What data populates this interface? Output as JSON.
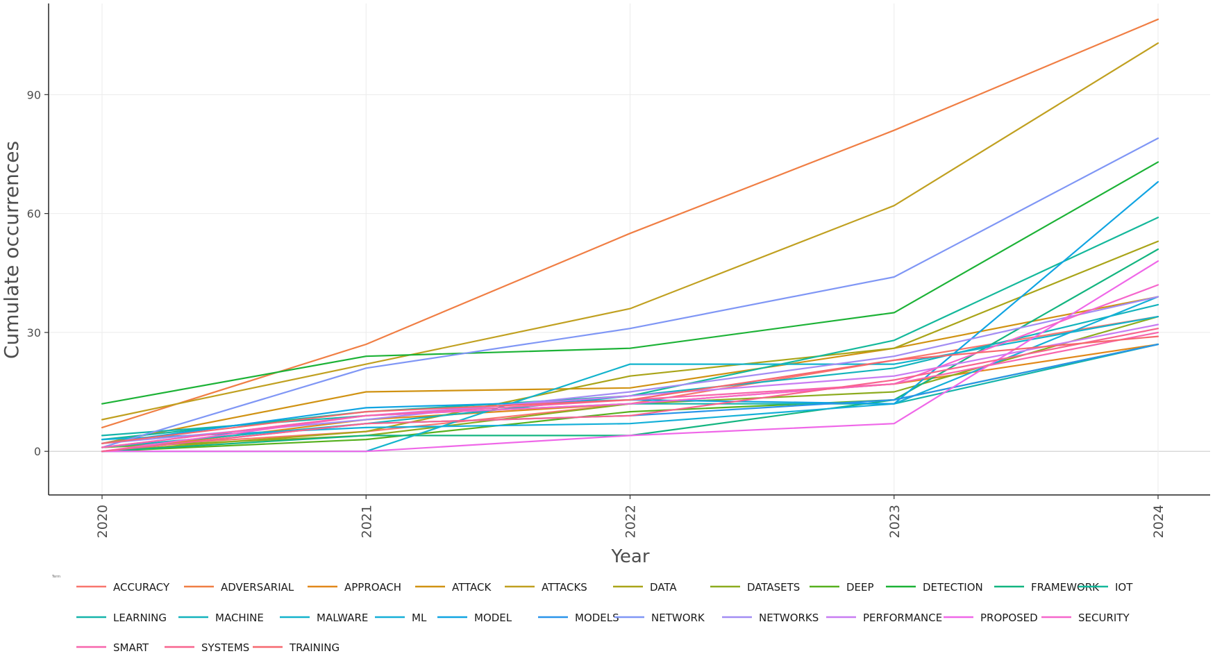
{
  "chart_data": {
    "type": "line",
    "title": "",
    "xlabel": "Year",
    "ylabel": "Cumulate occurrences",
    "legend_title": "Term",
    "legend_position": "bottom",
    "grid": true,
    "xlim": [
      2020,
      2024
    ],
    "ylim": [
      -11,
      113
    ],
    "x": [
      2020,
      2021,
      2022,
      2023,
      2024
    ],
    "x_tick_labels": [
      "2020",
      "2021",
      "2022",
      "2023",
      "2024"
    ],
    "y_ticks": [
      0,
      30,
      60,
      90
    ],
    "y_tick_labels": [
      "0",
      "30",
      "60",
      "90"
    ],
    "series": [
      {
        "name": "ACCURACY",
        "color": "#F8766D",
        "values": [
          1,
          5,
          12,
          23,
          34
        ]
      },
      {
        "name": "ADVERSARIAL",
        "color": "#F07E44",
        "values": [
          6,
          27,
          55,
          81,
          109
        ]
      },
      {
        "name": "APPROACH",
        "color": "#E1881A",
        "values": [
          0,
          8,
          12,
          17,
          27
        ]
      },
      {
        "name": "ATTACK",
        "color": "#D09212",
        "values": [
          2,
          15,
          16,
          26,
          39
        ]
      },
      {
        "name": "ATTACKS",
        "color": "#C0A020",
        "values": [
          8,
          22,
          36,
          62,
          103
        ]
      },
      {
        "name": "DATA",
        "color": "#A9A418",
        "values": [
          0,
          5,
          19,
          26,
          53
        ]
      },
      {
        "name": "DATASETS",
        "color": "#8CAB1E",
        "values": [
          1,
          4,
          12,
          15,
          34
        ]
      },
      {
        "name": "DEEP",
        "color": "#56B01E",
        "values": [
          0,
          3,
          10,
          13,
          27
        ]
      },
      {
        "name": "DETECTION",
        "color": "#1CB236",
        "values": [
          12,
          24,
          26,
          35,
          73
        ]
      },
      {
        "name": "FRAMEWORK",
        "color": "#13B580",
        "values": [
          0,
          4,
          4,
          13,
          51
        ]
      },
      {
        "name": "IOT",
        "color": "#14B89B",
        "values": [
          3,
          10,
          14,
          28,
          59
        ]
      },
      {
        "name": "LEARNING",
        "color": "#15B4AA",
        "values": [
          4,
          9,
          12,
          12,
          27
        ]
      },
      {
        "name": "MACHINE",
        "color": "#13B3BC",
        "values": [
          1,
          7,
          14,
          21,
          37
        ]
      },
      {
        "name": "MALWARE",
        "color": "#12B3CC",
        "values": [
          0,
          0,
          22,
          22,
          34
        ]
      },
      {
        "name": "ML",
        "color": "#14AFD8",
        "values": [
          3,
          6,
          7,
          12,
          39
        ]
      },
      {
        "name": "MODEL",
        "color": "#10A4E2",
        "values": [
          2,
          11,
          13,
          12,
          68
        ]
      },
      {
        "name": "MODELS",
        "color": "#2994EA",
        "values": [
          0,
          7,
          9,
          13,
          27
        ]
      },
      {
        "name": "NETWORK",
        "color": "#7F96F5",
        "values": [
          1,
          21,
          31,
          44,
          79
        ]
      },
      {
        "name": "NETWORKS",
        "color": "#A28CF3",
        "values": [
          2,
          8,
          15,
          24,
          39
        ]
      },
      {
        "name": "PERFORMANCE",
        "color": "#C87CF2",
        "values": [
          1,
          9,
          14,
          19,
          32
        ]
      },
      {
        "name": "PROPOSED",
        "color": "#EF67E8",
        "values": [
          0,
          0,
          4,
          7,
          48
        ]
      },
      {
        "name": "SECURITY",
        "color": "#F566CC",
        "values": [
          0,
          9,
          12,
          17,
          42
        ]
      },
      {
        "name": "SMART",
        "color": "#F765AC",
        "values": [
          1,
          9,
          13,
          17,
          30
        ]
      },
      {
        "name": "SYSTEMS",
        "color": "#F8638E",
        "values": [
          0,
          7,
          9,
          18,
          31
        ]
      },
      {
        "name": "TRAINING",
        "color": "#F6676E",
        "values": [
          2,
          10,
          13,
          23,
          29
        ]
      }
    ]
  }
}
